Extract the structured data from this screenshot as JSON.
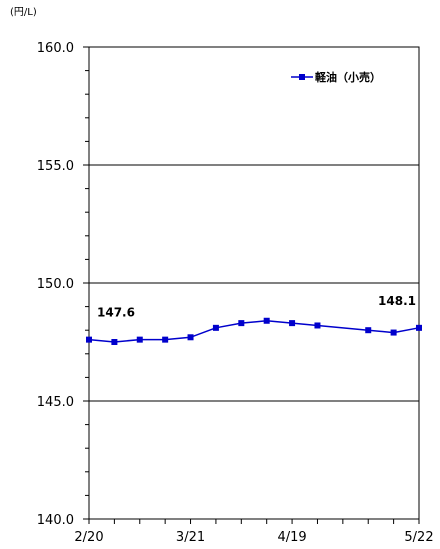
{
  "chart_data": {
    "type": "line",
    "unit_label": "(円/L)",
    "ylim": [
      140.0,
      160.0
    ],
    "yticks": [
      "140.0",
      "145.0",
      "150.0",
      "155.0",
      "160.0"
    ],
    "xlim": [
      0,
      13
    ],
    "xticks": [
      {
        "label": "2/20",
        "x": 0
      },
      {
        "label": "3/21",
        "x": 4
      },
      {
        "label": "4/19",
        "x": 8
      },
      {
        "label": "5/22",
        "x": 13
      }
    ],
    "grid": true,
    "legend": "top-right",
    "series": [
      {
        "name": "軽油（小売）",
        "color": "#0000cc",
        "x": [
          0,
          1,
          2,
          3,
          4,
          5,
          6,
          7,
          8,
          9,
          11,
          12,
          13
        ],
        "values": [
          147.6,
          147.5,
          147.6,
          147.6,
          147.7,
          148.1,
          148.3,
          148.4,
          148.3,
          148.2,
          148.0,
          147.9,
          148.1
        ]
      }
    ],
    "data_labels": [
      {
        "index": 0,
        "text": "147.6"
      },
      {
        "index": 12,
        "text": "148.1"
      }
    ]
  }
}
